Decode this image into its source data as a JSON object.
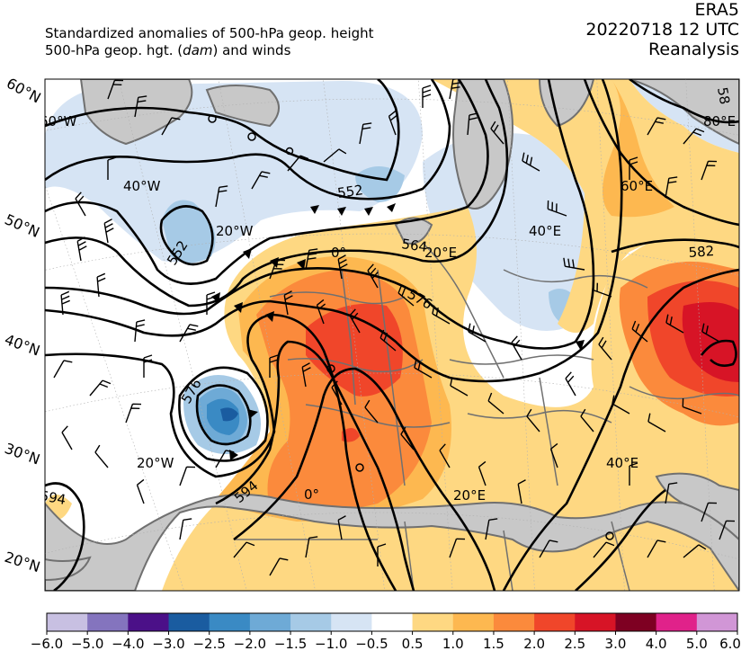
{
  "header": {
    "title_line1": "Standardized anomalies of 500-hPa geop. height",
    "title_line2_prefix": "500-hPa geop. hgt. (",
    "title_line2_unit": "dam",
    "title_line2_suffix": ") and winds",
    "dataset": "ERA5",
    "datetime": "20220718 12 UTC",
    "kind": "Reanalysis"
  },
  "map": {
    "lat_labels": [
      "60°N",
      "50°N",
      "40°N",
      "30°N",
      "20°N"
    ],
    "lon_labels": [
      "60°W",
      "40°W",
      "20°W",
      "0°",
      "20°E",
      "40°E",
      "60°E",
      "80°E",
      "20°W",
      "0°",
      "20°E",
      "40°E"
    ],
    "contour_labels": [
      "552",
      "552",
      "564",
      "576",
      "576",
      "582",
      "594",
      "594",
      "58"
    ],
    "colors": {
      "land_gray": "#c8c8c8",
      "border_gray": "#707070",
      "contour": "#000000"
    }
  },
  "colorbar": {
    "ticks": [
      "−6.0",
      "−5.0",
      "−4.0",
      "−3.0",
      "−2.5",
      "−2.0",
      "−1.5",
      "−1.0",
      "−0.5",
      "0.5",
      "1.0",
      "1.5",
      "2.0",
      "2.5",
      "3.0",
      "4.0",
      "5.0",
      "6.0"
    ],
    "colors": [
      "#c8c0e2",
      "#8474be",
      "#4b1088",
      "#1a5ca0",
      "#3a8ac4",
      "#6eaad6",
      "#a6cae6",
      "#d6e4f4",
      "#ffffff",
      "#fed882",
      "#fdb850",
      "#fb8a3c",
      "#f0462a",
      "#d71426",
      "#7e0022",
      "#e0228a",
      "#d196d6"
    ]
  }
}
